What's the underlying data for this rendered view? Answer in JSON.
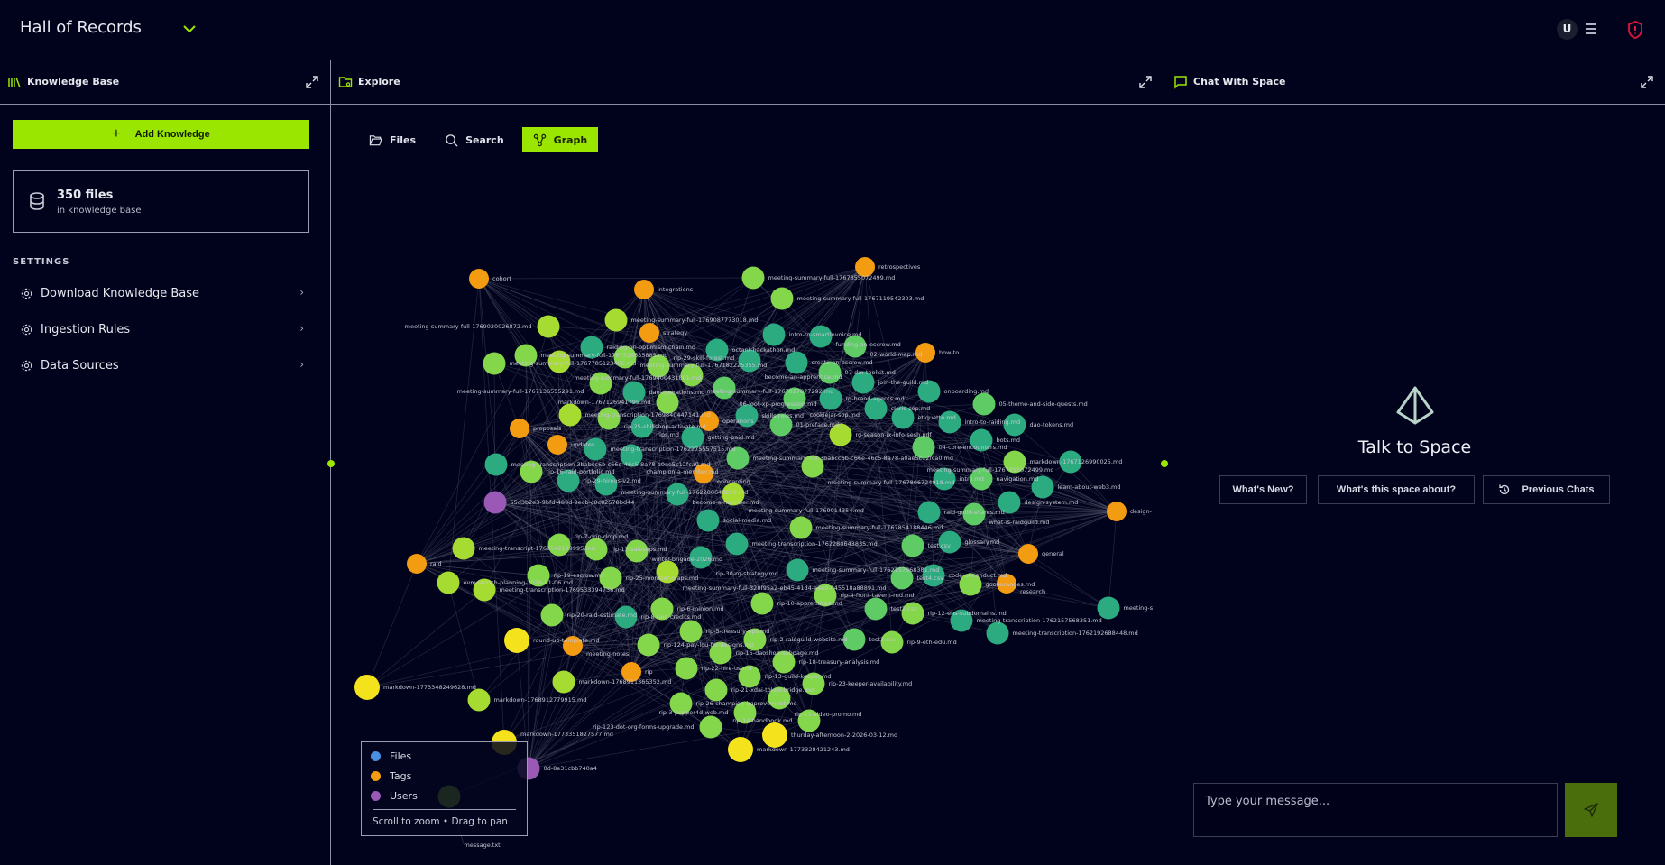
{
  "header": {
    "title": "Hall of Records",
    "avatar_initial": "U"
  },
  "knowledge_panel": {
    "title": "Knowledge Base",
    "add_button": "Add Knowledge",
    "files_count": "350 files",
    "files_sub": "in knowledge base",
    "settings_heading": "SETTINGS",
    "settings": [
      {
        "label": "Download Knowledge Base"
      },
      {
        "label": "Ingestion Rules"
      },
      {
        "label": "Data Sources"
      }
    ]
  },
  "explore_panel": {
    "title": "Explore",
    "tabs": [
      {
        "label": "Files"
      },
      {
        "label": "Search"
      },
      {
        "label": "Graph",
        "active": true
      }
    ]
  },
  "legend": {
    "items": [
      {
        "label": "Files",
        "color": "#4a90e2"
      },
      {
        "label": "Tags",
        "color": "#f39c12"
      },
      {
        "label": "Users",
        "color": "#9b59b6"
      }
    ],
    "hint": "Scroll to zoom • Drag to pan"
  },
  "chat_panel": {
    "title": "Chat With Space",
    "heading": "Talk to Space",
    "suggestions": [
      {
        "label": "What's New?"
      },
      {
        "label": "What's this space about?"
      },
      {
        "label": "Previous Chats"
      }
    ],
    "input_placeholder": "Type your message..."
  },
  "colors": {
    "accent": "#9be600",
    "tag": "#f39c12",
    "user": "#9b59b6",
    "alert": "#e0143c"
  },
  "graph": {
    "nodes": [
      {
        "label": "cohort",
        "type": "tag",
        "color": "#f39c12"
      },
      {
        "label": "integrations",
        "type": "tag",
        "color": "#f39c12"
      },
      {
        "label": "meeting-summary-full-1767855072499.md",
        "type": "file",
        "color": "#84d64a"
      },
      {
        "label": "meeting-summary-full-1767119542323.md",
        "type": "file",
        "color": "#84d64a"
      },
      {
        "label": "retrospectives",
        "type": "tag",
        "color": "#f39c12"
      },
      {
        "label": "meeting-summary-full-1769087773018.md",
        "type": "file",
        "color": "#a6dc32"
      },
      {
        "label": "meeting-summary-full-1769020026872.md",
        "type": "file",
        "color": "#a6dc32"
      },
      {
        "label": "strategy",
        "type": "tag",
        "color": "#f39c12"
      },
      {
        "label": "intro-to-smartinvoice.md",
        "type": "file",
        "color": "#2bab7f"
      },
      {
        "label": "funding-an-escrow.md",
        "type": "file",
        "color": "#2bab7f"
      },
      {
        "label": "02-world-map.md",
        "type": "file",
        "color": "#5fcb64"
      },
      {
        "label": "how-to",
        "type": "tag",
        "color": "#f39c12"
      },
      {
        "label": "raiding-on-optimism-chain.md",
        "type": "file",
        "color": "#2bab7f"
      },
      {
        "label": "meeting-summary-full-1767528635885.md",
        "type": "file",
        "color": "#84d64a"
      },
      {
        "label": "octant-hackathon.md",
        "type": "file",
        "color": "#2bab7f"
      },
      {
        "label": "meeting-summary-full-1767785123456.md",
        "type": "file",
        "color": "#84d64a"
      },
      {
        "label": "meeting-summary-full-1769400431881.md",
        "type": "file",
        "color": "#a6dc32"
      },
      {
        "label": "meeting-summary-full-1767182225355.md",
        "type": "file",
        "color": "#84d64a"
      },
      {
        "label": "become-an-apprentice.md",
        "type": "file",
        "color": "#2bab7f"
      },
      {
        "label": "create-an-escrow.md",
        "type": "file",
        "color": "#2bab7f"
      },
      {
        "label": "rip-29-skill-forest.md",
        "type": "file",
        "color": "#84d64a"
      },
      {
        "label": "meeting-summary-full-1767027877292.md",
        "type": "file",
        "color": "#84d64a"
      },
      {
        "label": "07-dm-toolkit.md",
        "type": "file",
        "color": "#5fcb64"
      },
      {
        "label": "join-the-guild.md",
        "type": "file",
        "color": "#2bab7f"
      },
      {
        "label": "onboarding.md",
        "type": "file",
        "color": "#2bab7f"
      },
      {
        "label": "meeting-summary-full-1767136555291.md",
        "type": "file",
        "color": "#84d64a"
      },
      {
        "label": "06-loot-xp-progression.md",
        "type": "file",
        "color": "#5fcb64"
      },
      {
        "label": "cookiejar-sop.md",
        "type": "file",
        "color": "#5fcb64"
      },
      {
        "label": "dao-operations.md",
        "type": "file",
        "color": "#2bab7f"
      },
      {
        "label": "markdown-1767126941795.md",
        "type": "file",
        "color": "#84d64a"
      },
      {
        "label": "rg-brand-agents.md",
        "type": "file",
        "color": "#2bab7f"
      },
      {
        "label": "cleric-sop.md",
        "type": "file",
        "color": "#2bab7f"
      },
      {
        "label": "etiquette.md",
        "type": "file",
        "color": "#2bab7f"
      },
      {
        "label": "05-theme-and-side-quests.md",
        "type": "file",
        "color": "#5fcb64"
      },
      {
        "label": "intro-to-raiding.md",
        "type": "file",
        "color": "#2bab7f"
      },
      {
        "label": "dao-tokens.md",
        "type": "file",
        "color": "#2bab7f"
      },
      {
        "label": "meeting-transcription-1769840447141.md",
        "type": "file",
        "color": "#a6dc32"
      },
      {
        "label": "rip-25-shillshop-activate.md",
        "type": "file",
        "color": "#84d64a"
      },
      {
        "label": "operations",
        "type": "tag",
        "color": "#f39c12"
      },
      {
        "label": "skills-roles.md",
        "type": "file",
        "color": "#2bab7f"
      },
      {
        "label": "01-preface.md",
        "type": "file",
        "color": "#5fcb64"
      },
      {
        "label": "proposals",
        "type": "tag",
        "color": "#f39c12"
      },
      {
        "label": "rips.md",
        "type": "file",
        "color": "#2bab7f"
      },
      {
        "label": "bots.md",
        "type": "file",
        "color": "#2bab7f"
      },
      {
        "label": "04-core-encounters.md",
        "type": "file",
        "color": "#5fcb64"
      },
      {
        "label": "markdown-1767126990025.md",
        "type": "file",
        "color": "#84d64a"
      },
      {
        "label": "meeting-summary-full-1767855072499.md",
        "type": "file",
        "color": "#2bab7f"
      },
      {
        "label": "intro.md",
        "type": "file",
        "color": "#2bab7f"
      },
      {
        "label": "navigation.md",
        "type": "file",
        "color": "#5fcb64"
      },
      {
        "label": "learn-about-web3.md",
        "type": "file",
        "color": "#2bab7f"
      },
      {
        "label": "design-system.md",
        "type": "file",
        "color": "#2bab7f"
      },
      {
        "label": "design-",
        "type": "tag",
        "color": "#f39c12"
      },
      {
        "label": "raid-guild-shares.md",
        "type": "file",
        "color": "#2bab7f"
      },
      {
        "label": "what-is-raidguild.md",
        "type": "file",
        "color": "#5fcb64"
      },
      {
        "label": "glossary.md",
        "type": "file",
        "color": "#2bab7f"
      },
      {
        "label": "test.csv",
        "type": "file",
        "color": "#5fcb64"
      },
      {
        "label": "general",
        "type": "tag",
        "color": "#f39c12"
      },
      {
        "label": "code-of-conduct.md",
        "type": "file",
        "color": "#2bab7f"
      },
      {
        "label": "test4.csv",
        "type": "file",
        "color": "#5fcb64"
      },
      {
        "label": "gooooranges.md",
        "type": "file",
        "color": "#84d64a"
      },
      {
        "label": "research",
        "type": "tag",
        "color": "#f39c12"
      },
      {
        "label": "meeting-s",
        "type": "file",
        "color": "#2bab7f"
      },
      {
        "label": "meeting-transcription-1762157568351.md",
        "type": "file",
        "color": "#2bab7f"
      },
      {
        "label": "meeting-transcription-1762192688448.md",
        "type": "file",
        "color": "#2bab7f"
      },
      {
        "label": "raid",
        "type": "tag",
        "color": "#f39c12"
      },
      {
        "label": "meeting-transcript-1769542129995.md",
        "type": "file",
        "color": "#a6dc32"
      },
      {
        "label": "evm-launch-planning-2026-01-06.md",
        "type": "file",
        "color": "#a6dc32"
      },
      {
        "label": "meeting-transcription-1769533394736.md",
        "type": "file",
        "color": "#a6dc32"
      },
      {
        "label": "round-up-template.md",
        "type": "file",
        "color": "#f4e31c"
      },
      {
        "label": "meeting-notes",
        "type": "tag",
        "color": "#f39c12"
      },
      {
        "label": "rip",
        "type": "tag",
        "color": "#f39c12"
      },
      {
        "label": "markdown-1773348249628.md",
        "type": "file",
        "color": "#f4e31c"
      },
      {
        "label": "markdown-1768912779915.md",
        "type": "file",
        "color": "#a6dc32"
      },
      {
        "label": "markdown-1768911365352.md",
        "type": "file",
        "color": "#a6dc32"
      },
      {
        "label": "rip-7-drip-drop.md",
        "type": "file",
        "color": "#84d64a"
      },
      {
        "label": "rip-17-salesops.md",
        "type": "file",
        "color": "#84d64a"
      },
      {
        "label": "winter-brigade-2026.md",
        "type": "file",
        "color": "#84d64a"
      },
      {
        "label": "rip-19-escrow.md",
        "type": "file",
        "color": "#84d64a"
      },
      {
        "label": "rip-25-monster-maps.md",
        "type": "file",
        "color": "#84d64a"
      },
      {
        "label": "rip-20-raid-estimate.md",
        "type": "file",
        "color": "#84d64a"
      },
      {
        "label": "rip-8-raid-credits.md",
        "type": "file",
        "color": "#2bab7f"
      },
      {
        "label": "rip-6-minion.md",
        "type": "file",
        "color": "#84d64a"
      },
      {
        "label": "rip-5-treasury-ops.md",
        "type": "file",
        "color": "#84d64a"
      },
      {
        "label": "rip-124-pay-lou-for-designs.md",
        "type": "file",
        "color": "#84d64a"
      },
      {
        "label": "rip-22-hire-us.md",
        "type": "file",
        "color": "#84d64a"
      },
      {
        "label": "rip-26-champion-improvement.md",
        "type": "file",
        "color": "#84d64a"
      },
      {
        "label": "rip-10-apprentices.md",
        "type": "file",
        "color": "#84d64a"
      },
      {
        "label": "rip-4-front-tavern-rnd.md",
        "type": "file",
        "color": "#84d64a"
      },
      {
        "label": "test2.csv",
        "type": "file",
        "color": "#5fcb64"
      },
      {
        "label": "rip-12-ens-subdomains.md",
        "type": "file",
        "color": "#84d64a"
      },
      {
        "label": "rip-2-raidguild-website.md",
        "type": "file",
        "color": "#84d64a"
      },
      {
        "label": "test3.csv",
        "type": "file",
        "color": "#5fcb64"
      },
      {
        "label": "rip-9-eth-edu.md",
        "type": "file",
        "color": "#84d64a"
      },
      {
        "label": "rip-15-daoshop-subpage.md",
        "type": "file",
        "color": "#84d64a"
      },
      {
        "label": "rip-18-treasury-analysis.md",
        "type": "file",
        "color": "#84d64a"
      },
      {
        "label": "rip-13-guild-keeper.md",
        "type": "file",
        "color": "#84d64a"
      },
      {
        "label": "rip-23-keeper-availability.md",
        "type": "file",
        "color": "#84d64a"
      },
      {
        "label": "rip-21-xdai-token-bridge.md",
        "type": "file",
        "color": "#84d64a"
      },
      {
        "label": "rip-11-video-promo.md",
        "type": "file",
        "color": "#84d64a"
      },
      {
        "label": "rip-3-pepper4d-web.md",
        "type": "file",
        "color": "#84d64a"
      },
      {
        "label": "rip-14-handbook.md",
        "type": "file",
        "color": "#84d64a"
      },
      {
        "label": "rip-123-dot-org-forms-upgrade.md",
        "type": "file",
        "color": "#84d64a"
      },
      {
        "label": "thurday-afternoon-2-2026-03-12.md",
        "type": "file",
        "color": "#f4e31c"
      },
      {
        "label": "markdown-1773328421243.md",
        "type": "file",
        "color": "#f4e31c"
      },
      {
        "label": "markdown-1773351827577.md",
        "type": "file",
        "color": "#f4e31c"
      },
      {
        "label": "0d-8e31cbb740a4",
        "type": "user",
        "color": "#9b59b6"
      },
      {
        "label": "message.txt",
        "type": "file",
        "color": "#a6dc32"
      },
      {
        "label": "updates",
        "type": "tag",
        "color": "#f39c12"
      },
      {
        "label": "rip-16-raid-portfolio.md",
        "type": "file",
        "color": "#84d64a"
      },
      {
        "label": "meeting-transcription-3babcc6b-c66e-46c5-8a78-a0ae5c12fca0.md",
        "type": "file",
        "color": "#2bab7f"
      },
      {
        "label": "meeting-transcription-1762275557515.md",
        "type": "file",
        "color": "#2bab7f"
      },
      {
        "label": "champion-a-member.md",
        "type": "file",
        "color": "#2bab7f"
      },
      {
        "label": "getting-paid.md",
        "type": "file",
        "color": "#2bab7f"
      },
      {
        "label": "rg-season-ix-info-sesh.pdf",
        "type": "file",
        "color": "#a6dc32"
      },
      {
        "label": "meeting-summary-full-3babcc6b-c66e-46c5-8a78-a0ae5c12fca0.md",
        "type": "file",
        "color": "#5fcb64"
      },
      {
        "label": "onboarding",
        "type": "tag",
        "color": "#f39c12"
      },
      {
        "label": "meeting-summary-full-1767806724918.md",
        "type": "file",
        "color": "#84d64a"
      },
      {
        "label": "rip-29-hireus-v2.md",
        "type": "file",
        "color": "#2bab7f"
      },
      {
        "label": "meeting-summary-full-1762280643229.md",
        "type": "file",
        "color": "#2bab7f"
      },
      {
        "label": "become-a-member.md",
        "type": "file",
        "color": "#2bab7f"
      },
      {
        "label": "meeting-summary-full-1769014354.md",
        "type": "file",
        "color": "#a6dc32"
      },
      {
        "label": "55d3b2e3-9bfd-480d-9ecb-c0c82578bd44",
        "type": "user",
        "color": "#9b59b6"
      },
      {
        "label": "meeting-summary-full-1767854188446.md",
        "type": "file",
        "color": "#84d64a"
      },
      {
        "label": "social-media.md",
        "type": "file",
        "color": "#2bab7f"
      },
      {
        "label": "meeting-summary-full-1762157868381.md",
        "type": "file",
        "color": "#2bab7f"
      },
      {
        "label": "meeting-summary-full-328f95a2-eb45-41d4-a4a0-045518a88891.md",
        "type": "file",
        "color": "#a6dc32"
      },
      {
        "label": "meeting-transcription-1762280643835.md",
        "type": "file",
        "color": "#2bab7f"
      },
      {
        "label": "rip-30-rg-strategy.md",
        "type": "file",
        "color": "#2bab7f"
      }
    ]
  }
}
